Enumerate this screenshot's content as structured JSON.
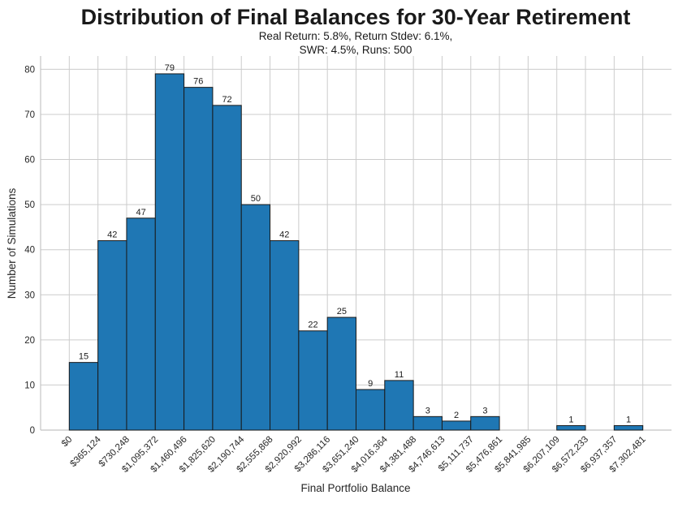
{
  "chart_data": {
    "type": "bar",
    "title": "Distribution of Final Balances for 30-Year Retirement",
    "subtitle_lines": [
      "Real Return: 5.8%, Return Stdev: 6.1%,",
      "SWR: 4.5%, Runs: 500"
    ],
    "xlabel": "Final Portfolio Balance",
    "ylabel": "Number of Simulations",
    "bin_edge_labels": [
      "$0",
      "$365,124",
      "$730,248",
      "$1,095,372",
      "$1,460,496",
      "$1,825,620",
      "$2,190,744",
      "$2,555,868",
      "$2,920,992",
      "$3,286,116",
      "$3,651,240",
      "$4,016,364",
      "$4,381,488",
      "$4,746,613",
      "$5,111,737",
      "$5,476,861",
      "$5,841,985",
      "$6,207,109",
      "$6,572,233",
      "$6,937,357",
      "$7,302,481"
    ],
    "values": [
      15,
      42,
      47,
      79,
      76,
      72,
      50,
      42,
      22,
      25,
      9,
      11,
      3,
      2,
      3,
      0,
      0,
      1,
      0,
      1
    ],
    "yticks": [
      0,
      10,
      20,
      30,
      40,
      50,
      60,
      70,
      80
    ],
    "ylim": [
      0,
      82.95
    ],
    "grid": true,
    "legend": "none",
    "bar_color": "#1f77b4",
    "bar_edge_color": "#1a1a1a",
    "grid_color": "#cccccc",
    "spine_color": "#c4c4c4",
    "text_color": "#262626"
  }
}
